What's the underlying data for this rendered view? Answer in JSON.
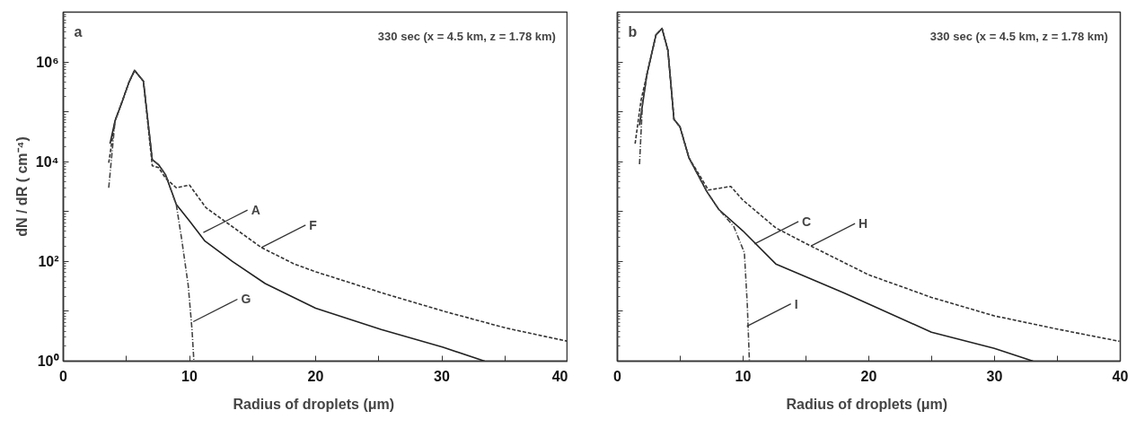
{
  "chart_data": [
    {
      "type": "line",
      "title": "a",
      "xlabel": "Radius of droplets  (μm)",
      "ylabel": "dN / dR ( cm⁻⁴)",
      "log": "y",
      "grid": false,
      "xlim": [
        0,
        40
      ],
      "ylim": [
        1,
        10000000
      ],
      "xticks": [
        0,
        {
          "value": 5,
          "label": null
        },
        10,
        {
          "value": 15,
          "label": null
        },
        20,
        {
          "value": 25,
          "label": null
        },
        30,
        {
          "value": 35,
          "label": null
        },
        40
      ],
      "yticks": [
        {
          "value": 1,
          "label": "10⁰"
        },
        {
          "value": 10,
          "label": null
        },
        {
          "value": 100,
          "label": "10²"
        },
        {
          "value": 1000,
          "label": null
        },
        {
          "value": 10000,
          "label": "10⁴"
        },
        {
          "value": 100000,
          "label": null
        },
        {
          "value": 1000000,
          "label": "10⁶"
        }
      ],
      "annotations": [
        "330 sec  (x = 4.5 km, z = 1.78 km)",
        {
          "text": "A",
          "x": 11.1,
          "y": 380
        },
        {
          "text": "F",
          "x": 15.7,
          "y": 190
        },
        {
          "text": "G",
          "x": 10.3,
          "y": 6.2
        }
      ],
      "series": [
        {
          "color": "#222222",
          "line_style": "solid",
          "x": [
            3.7,
            4.1,
            4.7,
            5.2,
            5.65,
            6.35,
            7.05,
            7.55,
            8.1,
            8.95,
            10.0,
            11.2,
            13.4,
            16.0,
            20.0,
            25.2,
            30.1,
            33.4
          ],
          "values": [
            23000,
            66000,
            170000,
            390000,
            680000,
            410000,
            11000,
            8700,
            5500,
            1400,
            650,
            260,
            100,
            36,
            11.5,
            4.3,
            1.9,
            1.0
          ]
        },
        {
          "color": "#333333",
          "line_style": "dashed",
          "x": [
            3.6,
            4.1,
            4.7,
            5.2,
            5.65,
            6.35,
            7.05,
            7.55,
            8.1,
            8.95,
            10.0,
            11.3,
            15.7,
            18.3,
            20.0,
            25.6,
            30.3,
            35.1,
            40.0
          ],
          "values": [
            9500,
            66000,
            170000,
            390000,
            680000,
            410000,
            8300,
            7600,
            4700,
            3000,
            3400,
            1200,
            190,
            89,
            62,
            22,
            9.8,
            4.6,
            2.5
          ]
        },
        {
          "color": "#444444",
          "line_style": "dashdot",
          "x": [
            3.6,
            4.1,
            4.7,
            5.2,
            5.65,
            6.35,
            7.05,
            7.55,
            8.1,
            8.95,
            9.4,
            9.9,
            10.2,
            10.35
          ],
          "values": [
            3000,
            66000,
            170000,
            390000,
            680000,
            410000,
            11000,
            8700,
            5500,
            1400,
            260,
            33,
            4.3,
            1.0
          ]
        }
      ]
    },
    {
      "type": "line",
      "title": "b",
      "xlabel": "Radius of droplets  (μm)",
      "log": "y",
      "grid": false,
      "tick_labels": "x",
      "xlim": [
        0,
        40
      ],
      "ylim": [
        1,
        10000000
      ],
      "xticks": [
        0,
        {
          "value": 5,
          "label": null
        },
        10,
        {
          "value": 15,
          "label": null
        },
        20,
        {
          "value": 25,
          "label": null
        },
        30,
        {
          "value": 35,
          "label": null
        },
        40
      ],
      "yticks": [
        1,
        10,
        100,
        1000,
        10000,
        100000,
        1000000
      ],
      "annotations": [
        "330 sec  (x = 4.5 km, z = 1.78 km)",
        {
          "text": "C",
          "x": 10.9,
          "y": 224
        },
        {
          "text": "H",
          "x": 15.4,
          "y": 204
        },
        {
          "text": "I",
          "x": 10.3,
          "y": 5
        }
      ],
      "series": [
        {
          "color": "#222222",
          "line_style": "solid",
          "x": [
            1.76,
            2.36,
            3.07,
            3.55,
            4.02,
            4.5,
            4.98,
            5.69,
            7.12,
            8.07,
            9.98,
            12.6,
            18.07,
            19.98,
            24.98,
            29.98,
            33.07
          ],
          "values": [
            54000,
            580000,
            3500000,
            4700000,
            1700000,
            71000,
            50000,
            12000,
            2500,
            1100,
            410,
            89,
            23,
            14,
            3.8,
            1.8,
            1.0
          ]
        },
        {
          "color": "#333333",
          "line_style": "dashed",
          "x": [
            1.41,
            1.88,
            2.36,
            3.07,
            3.55,
            4.02,
            4.5,
            4.98,
            5.69,
            7.24,
            9.02,
            9.98,
            12.6,
            15.45,
            19.98,
            24.98,
            29.98,
            34.98,
            39.93
          ],
          "values": [
            23000,
            170000,
            580000,
            3500000,
            4700000,
            1700000,
            71000,
            50000,
            12000,
            2700,
            3200,
            1700,
            470,
            200,
            54,
            19,
            8.1,
            4.4,
            2.5
          ]
        },
        {
          "color": "#444444",
          "line_style": "dashdot",
          "x": [
            1.76,
            2.0,
            2.36,
            3.07,
            3.55,
            4.02,
            4.5,
            4.98,
            5.69,
            7.12,
            8.07,
            9.26,
            10.1,
            10.33,
            10.5
          ],
          "values": [
            8900,
            160000,
            580000,
            3500000,
            4700000,
            1700000,
            71000,
            50000,
            12000,
            2500,
            1100,
            500,
            150,
            14,
            1.0
          ]
        }
      ]
    }
  ]
}
